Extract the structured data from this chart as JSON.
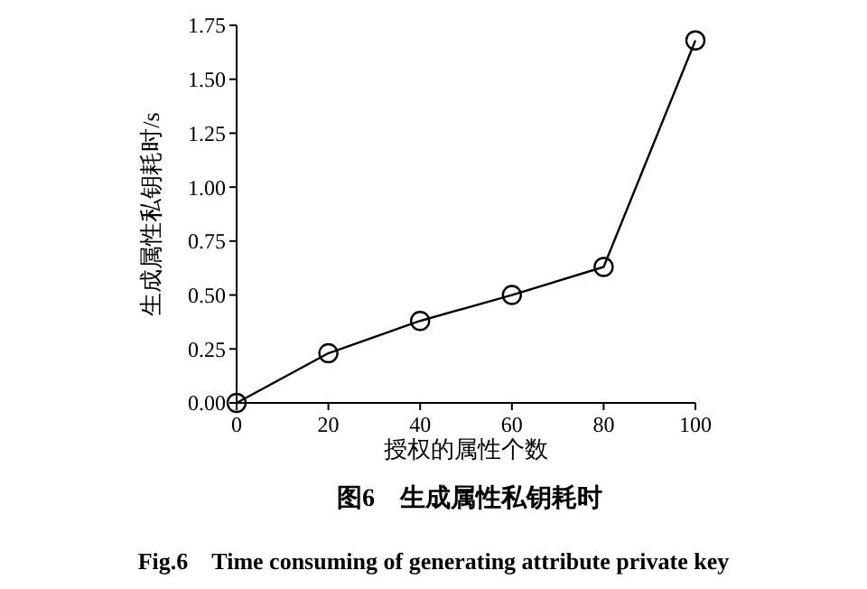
{
  "chart_data": {
    "type": "line",
    "title": "图6　生成属性私钥耗时",
    "subtitle": "Fig.6　Time consuming of generating attribute private key",
    "xlabel": "授权的属性个数",
    "ylabel": "生成属性私钥耗时/s",
    "x": [
      0,
      20,
      40,
      60,
      80,
      100
    ],
    "series": [
      {
        "color": "#000000",
        "values": [
          0,
          0.23,
          0.38,
          0.5,
          0.63,
          1.68
        ]
      }
    ],
    "xlim": [
      0,
      100
    ],
    "xticks": [
      0,
      20,
      40,
      60,
      80,
      100
    ],
    "ylim": [
      0,
      1.75
    ],
    "yticks": [
      {
        "value": 0,
        "label": "0.00"
      },
      {
        "value": 0.25,
        "label": "0.25"
      },
      {
        "value": 0.5,
        "label": "0.50"
      },
      {
        "value": 0.75,
        "label": "0.75"
      },
      {
        "value": 1,
        "label": "1.00"
      },
      {
        "value": 1.25,
        "label": "1.25"
      },
      {
        "value": 1.5,
        "label": "1.50"
      },
      {
        "value": 1.75,
        "label": "1.75"
      }
    ],
    "marker": "circle",
    "line_style": "solid",
    "grid": false
  }
}
